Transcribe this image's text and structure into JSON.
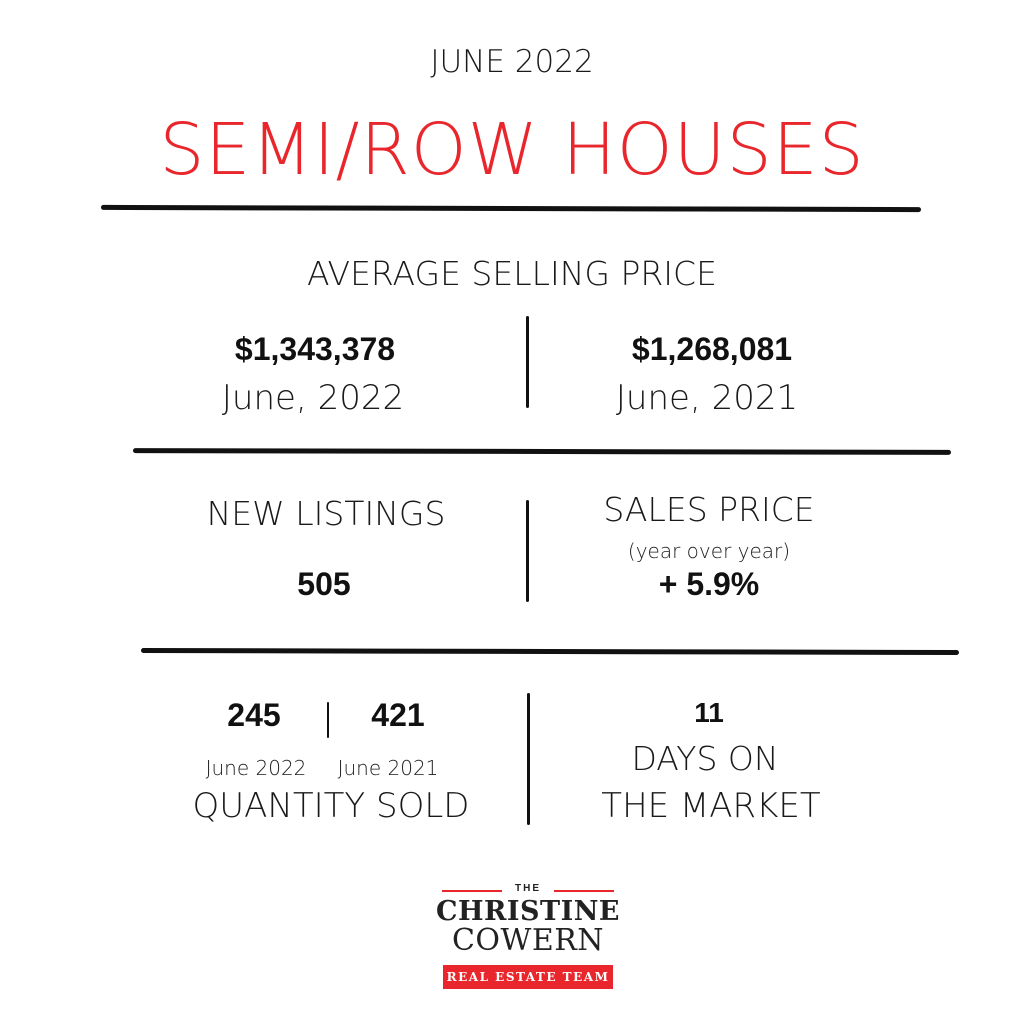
{
  "header": {
    "month": "JUNE 2022",
    "title": "SEMI/ROW HOUSES"
  },
  "average_selling_price": {
    "label": "AVERAGE SELLING PRICE",
    "current": {
      "value": "$1,343,378",
      "date": "June, 2022"
    },
    "previous": {
      "value": "$1,268,081",
      "date": "June, 2021"
    }
  },
  "new_listings": {
    "label": "NEW LISTINGS",
    "value": "505"
  },
  "sales_price": {
    "label": "SALES PRICE",
    "note": "(year over year)",
    "value": "+ 5.9%"
  },
  "quantity_sold": {
    "current": {
      "value": "245",
      "date": "June 2022"
    },
    "previous": {
      "value": "421",
      "date": "June 2021"
    },
    "label": "QUANTITY SOLD"
  },
  "days_on_market": {
    "value": "11",
    "line1": "DAYS ON",
    "line2": "THE MARKET"
  },
  "logo": {
    "the": "THE",
    "name_line1": "CHRISTINE",
    "name_line2": "COWERN",
    "badge": "REAL ESTATE TEAM"
  },
  "colors": {
    "accent": "#e8262c",
    "text": "#111111",
    "background": "#ffffff"
  }
}
